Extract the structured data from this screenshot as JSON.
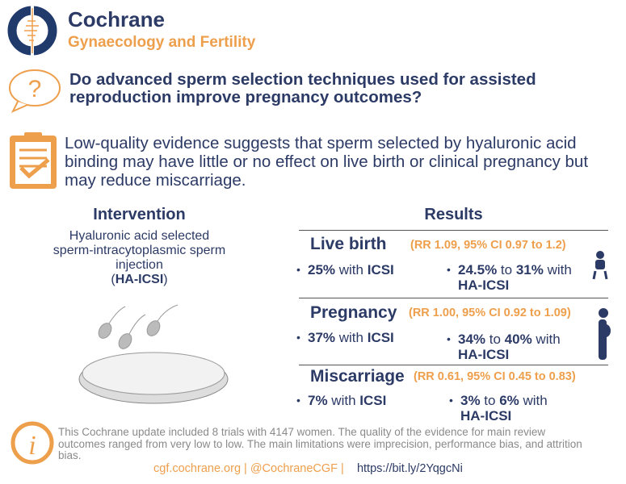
{
  "header": {
    "brand": "Cochrane",
    "group": "Gynaecology and Fertility"
  },
  "question": "Do advanced sperm selection techniques used for assisted reproduction improve pregnancy outcomes?",
  "summary": "Low-quality evidence suggests that sperm selected by hyaluronic acid binding may have little or no effect on live birth or clinical pregnancy but may reduce miscarriage.",
  "intervention": {
    "heading": "Intervention",
    "line1": "Hyaluronic acid selected sperm-intracytoplasmic sperm injection",
    "open": "(",
    "abbr": "HA-ICSI",
    "close": ")"
  },
  "results": {
    "heading": "Results",
    "items": [
      {
        "title": "Live birth",
        "stat": "(RR 1.09, 95% CI 0.97 to 1.2)",
        "control_val": "25%",
        "control_mid": " with ",
        "control_grp": "ICSI",
        "int_lo": "24.5%",
        "int_to": " to ",
        "int_hi": "31%",
        "int_with": " with",
        "int_grp": "HA-ICSI"
      },
      {
        "title": "Pregnancy",
        "stat": "(RR 1.00, 95% CI 0.92 to 1.09)",
        "control_val": "37%",
        "control_mid": " with ",
        "control_grp": "ICSI",
        "int_lo": "34%",
        "int_to": " to ",
        "int_hi": "40%",
        "int_with": " with",
        "int_grp": "HA-ICSI"
      },
      {
        "title": "Miscarriage",
        "stat": "(RR 0.61, 95% CI 0.45 to 0.83)",
        "control_val": "7%",
        "control_mid": " with ",
        "control_grp": "ICSI",
        "int_lo": "3%",
        "int_to": " to ",
        "int_hi": "6%",
        "int_with": " with",
        "int_grp": "HA-ICSI"
      }
    ]
  },
  "footer": {
    "note": "This Cochrane update included 8 trials with 4147 women. The quality of the evidence for main review outcomes ranged from very low to low. The main limitations were imprecision, performance bias, and attrition bias.",
    "links": "cgf.cochrane.org | @CochraneCGF |",
    "url": "https://bit.ly/2YqgcNi"
  },
  "colors": {
    "navy": "#2c3a66",
    "orange": "#ee9f4c"
  }
}
